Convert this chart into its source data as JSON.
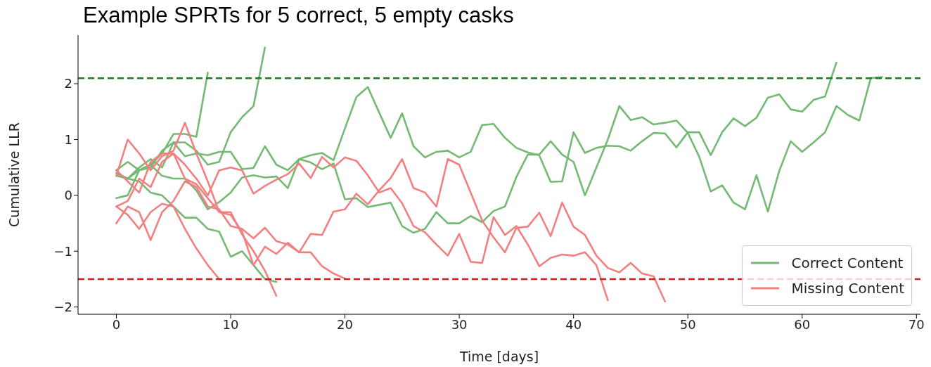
{
  "chart_data": {
    "type": "line",
    "title": "Example SPRTs for 5 correct, 5 empty casks",
    "xlabel": "Time [days]",
    "ylabel": "Cumulative LLR",
    "xlim": [
      -3.35,
      70.35
    ],
    "xticks": [
      0,
      10,
      20,
      30,
      40,
      50,
      60,
      70
    ],
    "ylim": [
      -2.13,
      2.87
    ],
    "yticks": [
      -2,
      -1,
      0,
      1,
      2
    ],
    "grid": false,
    "legend": "bottom right",
    "marker": "none",
    "line_style": "solid",
    "ref_lines": [
      {
        "axis": "y",
        "value": 2.1,
        "color": "#1a801a",
        "line_style": "dashed"
      },
      {
        "axis": "y",
        "value": -1.5,
        "color": "#cc1f1f",
        "line_style": "dashed"
      }
    ],
    "series": [
      {
        "name": "Correct Content",
        "color": "#74b974",
        "x": [
          0,
          1,
          2,
          3,
          4,
          5,
          6,
          7,
          8,
          9,
          10,
          11,
          12,
          13,
          14,
          15,
          16,
          17,
          18,
          19,
          20,
          21,
          22,
          23,
          24,
          25,
          26,
          27,
          28,
          29,
          30,
          31,
          32,
          33,
          34,
          35,
          36,
          37,
          38,
          39,
          40,
          41,
          42,
          43,
          44,
          45,
          46,
          47,
          48,
          49,
          50,
          51,
          52,
          53,
          54,
          55,
          56,
          57,
          58,
          59,
          60,
          61,
          62,
          63
        ],
        "values": [
          0.4,
          0.3,
          0.5,
          0.65,
          0.5,
          0.95,
          0.7,
          0.75,
          0.72,
          0.78,
          0.78,
          0.47,
          0.49,
          0.88,
          0.55,
          0.45,
          0.65,
          0.72,
          0.76,
          0.63,
          1.2,
          1.76,
          1.94,
          1.48,
          1.03,
          1.47,
          0.88,
          0.68,
          0.78,
          0.8,
          0.68,
          0.78,
          1.26,
          1.28,
          1.03,
          0.85,
          0.77,
          0.72,
          0.24,
          0.25,
          1.13,
          0.76,
          0.85,
          0.89,
          0.88,
          0.8,
          0.97,
          1.12,
          1.11,
          0.86,
          1.13,
          1.13,
          0.72,
          1.13,
          1.38,
          1.24,
          1.39,
          1.75,
          1.81,
          1.54,
          1.5,
          1.71,
          1.77,
          2.38
        ]
      },
      {
        "color": "#74b974",
        "x": [
          0,
          1,
          2,
          3,
          4,
          5,
          6,
          7,
          8,
          9,
          10,
          11,
          12,
          13,
          14,
          15,
          16,
          17,
          18,
          19,
          20,
          21,
          22,
          23,
          24,
          25,
          26,
          27,
          28,
          29,
          30,
          31,
          32,
          33,
          34,
          35,
          36,
          37,
          38,
          39,
          40,
          41,
          42,
          43,
          44,
          45,
          46,
          47,
          48,
          49,
          50,
          51,
          52,
          53,
          54,
          55,
          56,
          57,
          58,
          59,
          60,
          61,
          62,
          63,
          64,
          65,
          66,
          67
        ],
        "values": [
          -0.05,
          0.0,
          0.45,
          0.55,
          0.35,
          0.3,
          0.3,
          0.09,
          -0.25,
          -0.12,
          0.05,
          0.32,
          0.36,
          0.32,
          0.34,
          0.13,
          0.65,
          0.59,
          0.47,
          0.57,
          -0.07,
          -0.05,
          -0.21,
          -0.17,
          -0.13,
          -0.55,
          -0.67,
          -0.6,
          -0.3,
          -0.5,
          -0.5,
          -0.37,
          -0.48,
          -0.28,
          -0.2,
          0.33,
          0.73,
          0.73,
          0.97,
          0.73,
          0.6,
          0.0,
          0.5,
          1.0,
          1.6,
          1.35,
          1.4,
          1.27,
          1.3,
          1.34,
          1.12,
          0.69,
          0.07,
          0.18,
          -0.13,
          -0.25,
          0.36,
          -0.29,
          0.44,
          0.97,
          0.78,
          0.95,
          1.13,
          1.6,
          1.44,
          1.34,
          2.1,
          2.12
        ]
      },
      {
        "color": "#74b974",
        "x": [
          0,
          1,
          2,
          3,
          4,
          5,
          6,
          7,
          8
        ],
        "values": [
          0.35,
          0.3,
          0.45,
          0.55,
          0.75,
          1.1,
          1.1,
          1.05,
          2.2
        ]
      },
      {
        "color": "#74b974",
        "x": [
          0,
          1,
          2,
          3,
          4,
          5,
          6,
          7,
          8,
          9,
          10,
          11,
          12,
          13
        ],
        "values": [
          0.45,
          0.6,
          0.45,
          0.5,
          0.8,
          0.95,
          0.95,
          0.8,
          0.55,
          0.6,
          1.13,
          1.4,
          1.6,
          2.65
        ]
      },
      {
        "color": "#74b974",
        "x": [
          0,
          1,
          2,
          3,
          4,
          5,
          6,
          7,
          8,
          9,
          10,
          11,
          12,
          13,
          14
        ],
        "values": [
          0.4,
          0.3,
          0.25,
          0.05,
          0.0,
          -0.2,
          -0.4,
          -0.4,
          -0.6,
          -0.65,
          -1.1,
          -1.0,
          -1.25,
          -1.5,
          -1.55
        ]
      },
      {
        "name": "Missing Content",
        "color": "#f28080",
        "x": [
          0,
          1,
          2,
          3,
          4,
          5,
          6,
          7,
          8,
          9
        ],
        "values": [
          -0.2,
          -0.35,
          -0.6,
          -0.3,
          -0.15,
          -0.2,
          -0.6,
          -0.95,
          -1.25,
          -1.5
        ]
      },
      {
        "color": "#f28080",
        "x": [
          0,
          1,
          2,
          3,
          4,
          5,
          6,
          7,
          8,
          9,
          10,
          11,
          12,
          13,
          14
        ],
        "values": [
          0.45,
          0.25,
          0.05,
          0.6,
          0.75,
          0.75,
          0.3,
          0.2,
          -0.05,
          -0.3,
          -0.3,
          -0.7,
          -1.0,
          -1.35,
          -1.8
        ]
      },
      {
        "color": "#f28080",
        "x": [
          0,
          1,
          2,
          3,
          4,
          5,
          6,
          7,
          8,
          9,
          10,
          11,
          12,
          13,
          14,
          15,
          16,
          17,
          18,
          19,
          20
        ],
        "values": [
          0.35,
          1.0,
          0.75,
          0.45,
          0.7,
          0.8,
          1.3,
          0.75,
          0.25,
          -0.3,
          -0.35,
          -0.65,
          -1.25,
          -0.92,
          -1.05,
          -0.85,
          -1.02,
          -1.02,
          -1.27,
          -1.4,
          -1.49
        ]
      },
      {
        "color": "#f28080",
        "x": [
          0,
          1,
          2,
          3,
          4,
          5,
          6,
          7,
          8,
          9,
          10,
          11,
          12,
          13,
          14,
          15,
          16,
          17,
          18,
          19,
          20,
          21,
          22,
          23,
          24,
          25,
          26,
          27,
          28,
          29,
          30,
          31,
          32,
          33,
          34,
          35,
          36,
          37,
          38,
          39,
          40,
          41,
          42,
          43,
          44,
          45,
          46,
          47,
          48
        ],
        "values": [
          -0.5,
          -0.2,
          -0.3,
          -0.8,
          -0.3,
          -0.1,
          0.25,
          0.15,
          -0.2,
          -0.25,
          -0.55,
          -0.6,
          -0.77,
          -0.58,
          -0.82,
          -0.88,
          -1.02,
          -0.69,
          -0.71,
          -0.29,
          -0.25,
          0.03,
          -0.16,
          0.09,
          0.31,
          0.65,
          0.13,
          0.05,
          -0.2,
          0.65,
          0.55,
          0.05,
          -0.45,
          -0.75,
          -1.02,
          -0.58,
          -0.56,
          -0.31,
          -0.73,
          -0.13,
          -0.56,
          -0.71,
          -1.08,
          -1.3,
          -1.38,
          -1.21,
          -1.4,
          -1.45,
          -1.9
        ]
      },
      {
        "color": "#f28080",
        "x": [
          0,
          1,
          2,
          3,
          4,
          5,
          6,
          7,
          8,
          9,
          10,
          11,
          12,
          13,
          14,
          15,
          16,
          17,
          18,
          19,
          20,
          21,
          22,
          23,
          24,
          25,
          26,
          27,
          28,
          29,
          30,
          31,
          32,
          33,
          34,
          35,
          36,
          37,
          38,
          39,
          40,
          41,
          42,
          43
        ],
        "values": [
          -0.2,
          -0.1,
          0.3,
          0.15,
          0.6,
          0.75,
          0.55,
          0.3,
          0.0,
          0.45,
          0.5,
          0.45,
          0.03,
          0.17,
          0.28,
          0.38,
          0.57,
          0.31,
          0.69,
          0.5,
          0.68,
          0.62,
          0.36,
          0.05,
          0.13,
          -0.14,
          -0.55,
          -0.66,
          -0.88,
          -1.08,
          -0.69,
          -1.19,
          -1.21,
          -0.39,
          -0.71,
          -0.55,
          -0.88,
          -1.27,
          -1.12,
          -1.06,
          -1.08,
          -1.02,
          -1.25,
          -1.88
        ]
      }
    ]
  }
}
